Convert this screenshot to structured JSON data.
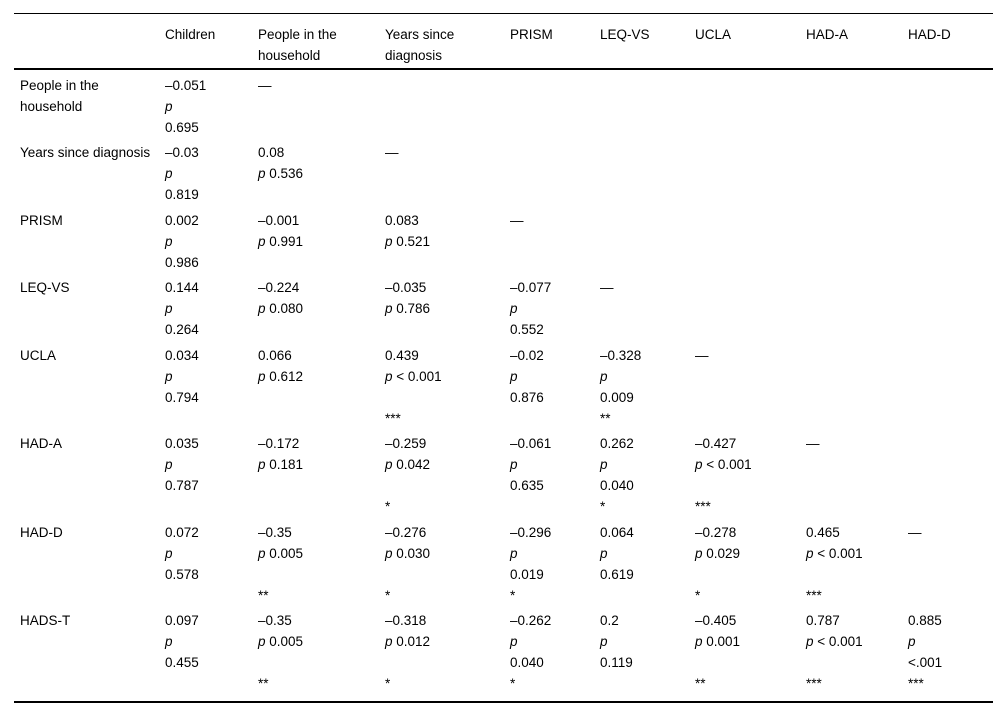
{
  "table": {
    "columns": [
      "",
      "Children",
      "People in the household",
      "Years since diagnosis",
      "PRISM",
      "LEQ-VS",
      "UCLA",
      "HAD-A",
      "HAD-D"
    ],
    "dash": "—",
    "rows": [
      {
        "label": "People in the household",
        "lines": 3,
        "cells": [
          [
            "–0.051",
            "p",
            "0.695"
          ],
          [
            "—"
          ],
          [],
          [],
          [],
          [],
          [],
          []
        ]
      },
      {
        "label": "Years since diagnosis",
        "lines": 3,
        "cells": [
          [
            "–0.03",
            "p",
            "0.819"
          ],
          [
            "0.08",
            "p 0.536"
          ],
          [
            "—"
          ],
          [],
          [],
          [],
          [],
          []
        ]
      },
      {
        "label": "PRISM",
        "lines": 3,
        "cells": [
          [
            "0.002",
            "p",
            "0.986"
          ],
          [
            "–0.001",
            "p 0.991"
          ],
          [
            "0.083",
            "p 0.521"
          ],
          [
            "—"
          ],
          [],
          [],
          [],
          []
        ]
      },
      {
        "label": "LEQ-VS",
        "lines": 3,
        "cells": [
          [
            "0.144",
            "p",
            "0.264"
          ],
          [
            "–0.224",
            "p 0.080"
          ],
          [
            "–0.035",
            "p 0.786"
          ],
          [
            "–0.077",
            "p",
            "0.552"
          ],
          [
            "—"
          ],
          [],
          [],
          []
        ]
      },
      {
        "label": "UCLA",
        "lines": 4,
        "cells": [
          [
            "0.034",
            "p",
            "0.794"
          ],
          [
            "0.066",
            "p 0.612"
          ],
          [
            "0.439",
            "p < 0.001",
            "",
            "***"
          ],
          [
            "–0.02",
            "p",
            "0.876"
          ],
          [
            "–0.328",
            "p",
            "0.009",
            "**"
          ],
          [
            "—"
          ],
          [],
          []
        ]
      },
      {
        "label": "HAD-A",
        "lines": 4,
        "cells": [
          [
            "0.035",
            "p",
            "0.787"
          ],
          [
            "–0.172",
            "p 0.181"
          ],
          [
            "–0.259",
            "p 0.042",
            "",
            "*"
          ],
          [
            "–0.061",
            "p",
            "0.635"
          ],
          [
            "0.262",
            "p",
            "0.040",
            "*"
          ],
          [
            "–0.427",
            "p < 0.001",
            "",
            "***"
          ],
          [
            "—"
          ],
          []
        ]
      },
      {
        "label": "HAD-D",
        "lines": 4,
        "cells": [
          [
            "0.072",
            "p",
            "0.578"
          ],
          [
            "–0.35",
            "p 0.005",
            "",
            "**"
          ],
          [
            "–0.276",
            "p 0.030",
            "",
            "*"
          ],
          [
            "–0.296",
            "p",
            "0.019",
            "*"
          ],
          [
            "0.064",
            "p",
            "0.619"
          ],
          [
            "–0.278",
            "p 0.029",
            "",
            "*"
          ],
          [
            "0.465",
            "p < 0.001",
            "",
            "***"
          ],
          [
            "—"
          ]
        ]
      },
      {
        "label": "HADS-T",
        "lines": 4,
        "cells": [
          [
            "0.097",
            "p",
            "0.455"
          ],
          [
            "–0.35",
            "p 0.005",
            "",
            "**"
          ],
          [
            "–0.318",
            "p 0.012",
            "",
            "*"
          ],
          [
            "–0.262",
            "p",
            "0.040",
            "*"
          ],
          [
            "0.2",
            "p",
            "0.119"
          ],
          [
            "–0.405",
            "p 0.001",
            "",
            "**"
          ],
          [
            "0.787",
            "p < 0.001",
            "",
            "***"
          ],
          [
            "0.885",
            "p",
            "<.001",
            "***"
          ]
        ]
      }
    ]
  }
}
